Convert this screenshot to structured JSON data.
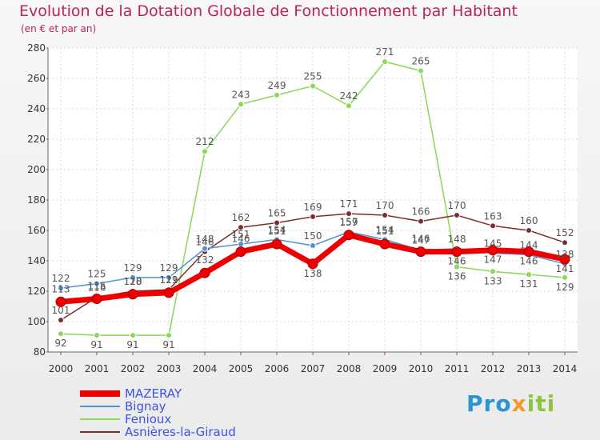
{
  "chart_data": {
    "type": "line",
    "title": "Evolution de la Dotation Globale de Fonctionnement par Habitant",
    "subtitle": "(en € et par an)",
    "xlabel": "",
    "ylabel": "",
    "categories": [
      "2000",
      "2001",
      "2002",
      "2003",
      "2004",
      "2005",
      "2006",
      "2007",
      "2008",
      "2009",
      "2010",
      "2011",
      "2012",
      "2013",
      "2014"
    ],
    "ylim": [
      80,
      280
    ],
    "yticks": [
      "80",
      "100",
      "120",
      "140",
      "160",
      "180",
      "200",
      "220",
      "240",
      "260",
      "280"
    ],
    "series": [
      {
        "name": "MAZERAY",
        "color": "#ee0000",
        "values": [
          113,
          115,
          118,
          119,
          132,
          146,
          151,
          138,
          157,
          151,
          146,
          146,
          147,
          146,
          141
        ],
        "labels": [
          "113",
          "115",
          "118",
          "119",
          "132",
          "146",
          "151",
          "138",
          "157",
          "151",
          "146",
          "146",
          "147",
          "146",
          "141"
        ]
      },
      {
        "name": "Bignay",
        "color": "#4f93d0",
        "values": [
          122,
          125,
          129,
          129,
          148,
          151,
          154,
          150,
          159,
          154,
          147,
          148,
          145,
          144,
          138
        ],
        "labels": [
          "122",
          "125",
          "129",
          "129",
          "148",
          "151",
          "154",
          "150",
          "159",
          "154",
          "147",
          "148",
          "145",
          "144",
          "138"
        ]
      },
      {
        "name": "Fenioux",
        "color": "#88d955",
        "values": [
          92,
          91,
          91,
          91,
          212,
          243,
          249,
          255,
          242,
          271,
          265,
          136,
          133,
          131,
          129
        ],
        "labels": [
          "92",
          "91",
          "91",
          "91",
          "212",
          "243",
          "249",
          "255",
          "242",
          "271",
          "265",
          "136",
          "133",
          "131",
          "129"
        ]
      },
      {
        "name": "Asnières-la-Giraud",
        "color": "#7a2e2e",
        "values": [
          101,
          116,
          120,
          121,
          146,
          162,
          165,
          169,
          171,
          170,
          166,
          170,
          163,
          160,
          152
        ],
        "labels": [
          "101",
          "116",
          "120",
          "121",
          "146",
          "162",
          "165",
          "169",
          "171",
          "170",
          "166",
          "170",
          "163",
          "160",
          "152"
        ]
      }
    ]
  },
  "logo": {
    "p1": "Pro",
    "p2": "x",
    "p3": "iti"
  }
}
